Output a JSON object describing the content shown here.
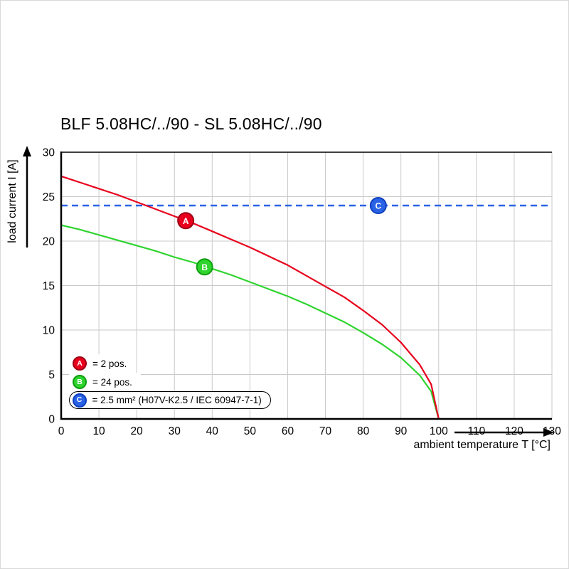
{
  "chart_data": {
    "type": "line",
    "title": "BLF 5.08HC/../90 - SL 5.08HC/../90",
    "xlabel": "ambient temperature T [°C]",
    "ylabel": "load current I [A]",
    "xlim": [
      0,
      130
    ],
    "ylim": [
      0,
      30
    ],
    "x_tick_step": 10,
    "y_tick_step": 5,
    "x_ticks": [
      0,
      10,
      20,
      30,
      40,
      50,
      60,
      70,
      80,
      90,
      100,
      110,
      120,
      130
    ],
    "y_ticks": [
      0,
      5,
      10,
      15,
      20,
      25,
      30
    ],
    "grid": true,
    "legend_position": "lower left",
    "series": [
      {
        "name": "B",
        "description": "24 pos.",
        "style": "solid",
        "color": "#2fd42f",
        "edge": "#0f9e0f",
        "marker_at": {
          "x": 38,
          "y": 17.1
        },
        "points": [
          [
            0,
            21.8
          ],
          [
            5,
            21.3
          ],
          [
            10,
            20.7
          ],
          [
            15,
            20.1
          ],
          [
            20,
            19.5
          ],
          [
            25,
            18.9
          ],
          [
            30,
            18.2
          ],
          [
            35,
            17.6
          ],
          [
            40,
            16.9
          ],
          [
            45,
            16.2
          ],
          [
            50,
            15.4
          ],
          [
            55,
            14.6
          ],
          [
            60,
            13.8
          ],
          [
            65,
            12.9
          ],
          [
            70,
            11.9
          ],
          [
            75,
            10.9
          ],
          [
            80,
            9.7
          ],
          [
            85,
            8.4
          ],
          [
            90,
            6.9
          ],
          [
            95,
            4.9
          ],
          [
            98,
            3.1
          ],
          [
            100,
            0
          ]
        ]
      },
      {
        "name": "A",
        "description": "2 pos.",
        "style": "solid",
        "color": "#e8001c",
        "edge": "#9e0013",
        "marker_at": {
          "x": 33,
          "y": 22.3
        },
        "points": [
          [
            0,
            27.3
          ],
          [
            5,
            26.6
          ],
          [
            10,
            25.9
          ],
          [
            15,
            25.2
          ],
          [
            20,
            24.4
          ],
          [
            25,
            23.6
          ],
          [
            30,
            22.8
          ],
          [
            35,
            22.0
          ],
          [
            40,
            21.1
          ],
          [
            45,
            20.2
          ],
          [
            50,
            19.3
          ],
          [
            55,
            18.3
          ],
          [
            60,
            17.3
          ],
          [
            65,
            16.1
          ],
          [
            70,
            14.9
          ],
          [
            75,
            13.7
          ],
          [
            80,
            12.2
          ],
          [
            85,
            10.6
          ],
          [
            90,
            8.6
          ],
          [
            95,
            6.1
          ],
          [
            98,
            3.9
          ],
          [
            100,
            0
          ]
        ]
      },
      {
        "name": "C",
        "description": "2.5 mm² (H07V-K2.5 / IEC 60947-7-1)",
        "style": "dashed",
        "color": "#2a62e6",
        "edge": "#0d3fbf",
        "value": 24,
        "marker_at": {
          "x": 84,
          "y": 24
        }
      }
    ],
    "legend": [
      {
        "letter": "A",
        "color": "#e8001c",
        "edge": "#9e0013",
        "text": "= 2 pos.",
        "boxed": false
      },
      {
        "letter": "B",
        "color": "#2fd42f",
        "edge": "#0f9e0f",
        "text": "= 24 pos.",
        "boxed": false
      },
      {
        "letter": "C",
        "color": "#2a62e6",
        "edge": "#0d3fbf",
        "text": "= 2.5 mm² (H07V-K2.5 / IEC 60947-7-1)",
        "boxed": true
      }
    ]
  }
}
